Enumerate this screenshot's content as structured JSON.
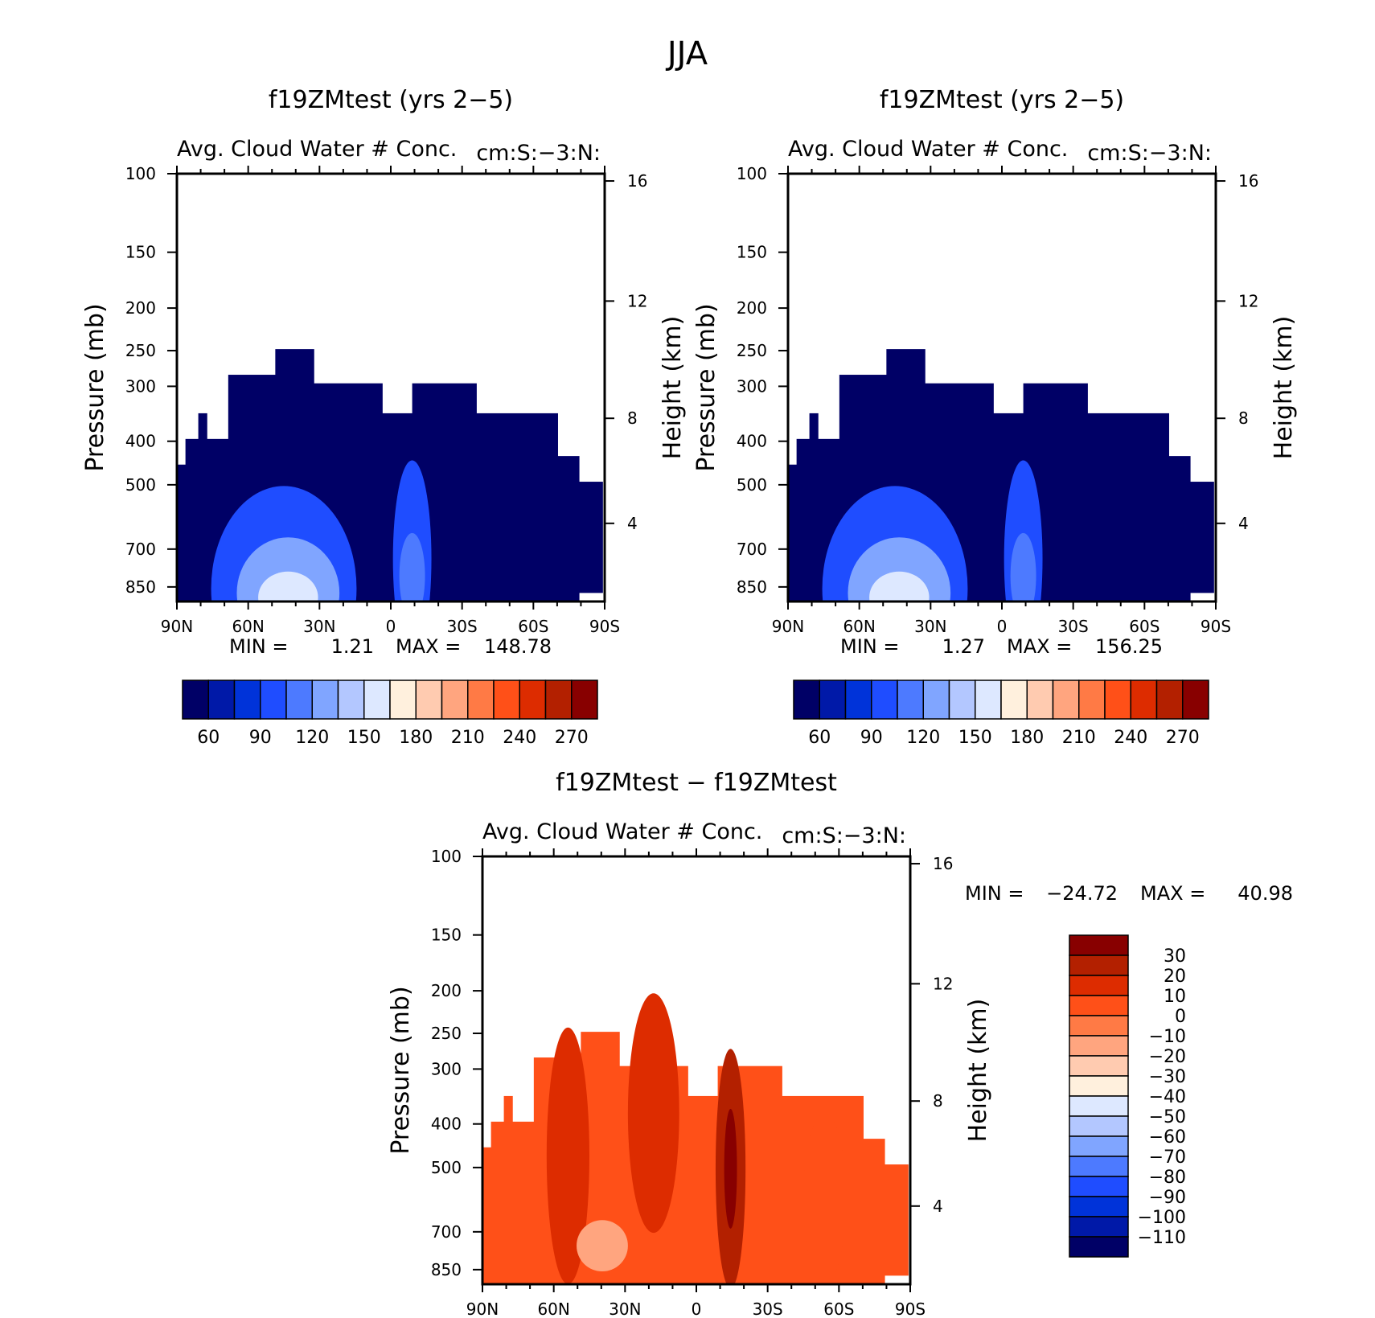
{
  "figure_title": "JJA",
  "palette": {
    "increments": [
      "#000066",
      "#0019a8",
      "#0033d9",
      "#1f4dff",
      "#4d7aff",
      "#80a5ff",
      "#b3c7ff",
      "#dde8ff",
      "#fff0dd",
      "#ffcbb0",
      "#ffa57f",
      "#ff7a45",
      "#ff5018",
      "#dd2c00",
      "#b32000",
      "#880000"
    ]
  },
  "chart_data": [
    {
      "id": "panel1",
      "type": "contour",
      "title": "f19ZMtest (yrs 2−5)",
      "variable": "Avg. Cloud Water # Conc.",
      "units": "cm:S:−3:N:",
      "ylabel": "Pressure (mb)",
      "y2label": "Height (km)",
      "xticks": [
        "90N",
        "60N",
        "30N",
        "0",
        "30S",
        "60S",
        "90S"
      ],
      "yticks": [
        "100",
        "150",
        "200",
        "250",
        "300",
        "400",
        "500",
        "700",
        "850"
      ],
      "y2ticks": [
        "16",
        "12",
        "8",
        "4"
      ],
      "min_label": "MIN =",
      "min_value": "1.21",
      "max_label": "MAX =",
      "max_value": "148.78",
      "colorbar_labels": [
        "60",
        "90",
        "120",
        "150",
        "180",
        "210",
        "240",
        "270"
      ]
    },
    {
      "id": "panel2",
      "type": "contour",
      "title": "f19ZMtest (yrs 2−5)",
      "variable": "Avg. Cloud Water # Conc.",
      "units": "cm:S:−3:N:",
      "ylabel": "Pressure (mb)",
      "y2label": "Height (km)",
      "xticks": [
        "90N",
        "60N",
        "30N",
        "0",
        "30S",
        "60S",
        "90S"
      ],
      "yticks": [
        "100",
        "150",
        "200",
        "250",
        "300",
        "400",
        "500",
        "700",
        "850"
      ],
      "y2ticks": [
        "16",
        "12",
        "8",
        "4"
      ],
      "min_label": "MIN =",
      "min_value": "1.27",
      "max_label": "MAX =",
      "max_value": "156.25",
      "colorbar_labels": [
        "60",
        "90",
        "120",
        "150",
        "180",
        "210",
        "240",
        "270"
      ]
    },
    {
      "id": "panel3",
      "type": "contour-difference",
      "title": "f19ZMtest − f19ZMtest",
      "variable": "Avg. Cloud Water # Conc.",
      "units": "cm:S:−3:N:",
      "ylabel": "Pressure (mb)",
      "y2label": "Height (km)",
      "xticks": [
        "90N",
        "60N",
        "30N",
        "0",
        "30S",
        "60S",
        "90S"
      ],
      "yticks": [
        "100",
        "150",
        "200",
        "250",
        "300",
        "400",
        "500",
        "700",
        "850"
      ],
      "y2ticks": [
        "16",
        "12",
        "8",
        "4"
      ],
      "min_label": "MIN =",
      "min_value": "−24.72",
      "max_label": "MAX =",
      "max_value": "40.98",
      "colorbar_labels": [
        "30",
        "20",
        "10",
        "0",
        "−10",
        "−20",
        "−30",
        "−40",
        "−50",
        "−60",
        "−70",
        "−80",
        "−90",
        "−100",
        "−110"
      ]
    }
  ]
}
